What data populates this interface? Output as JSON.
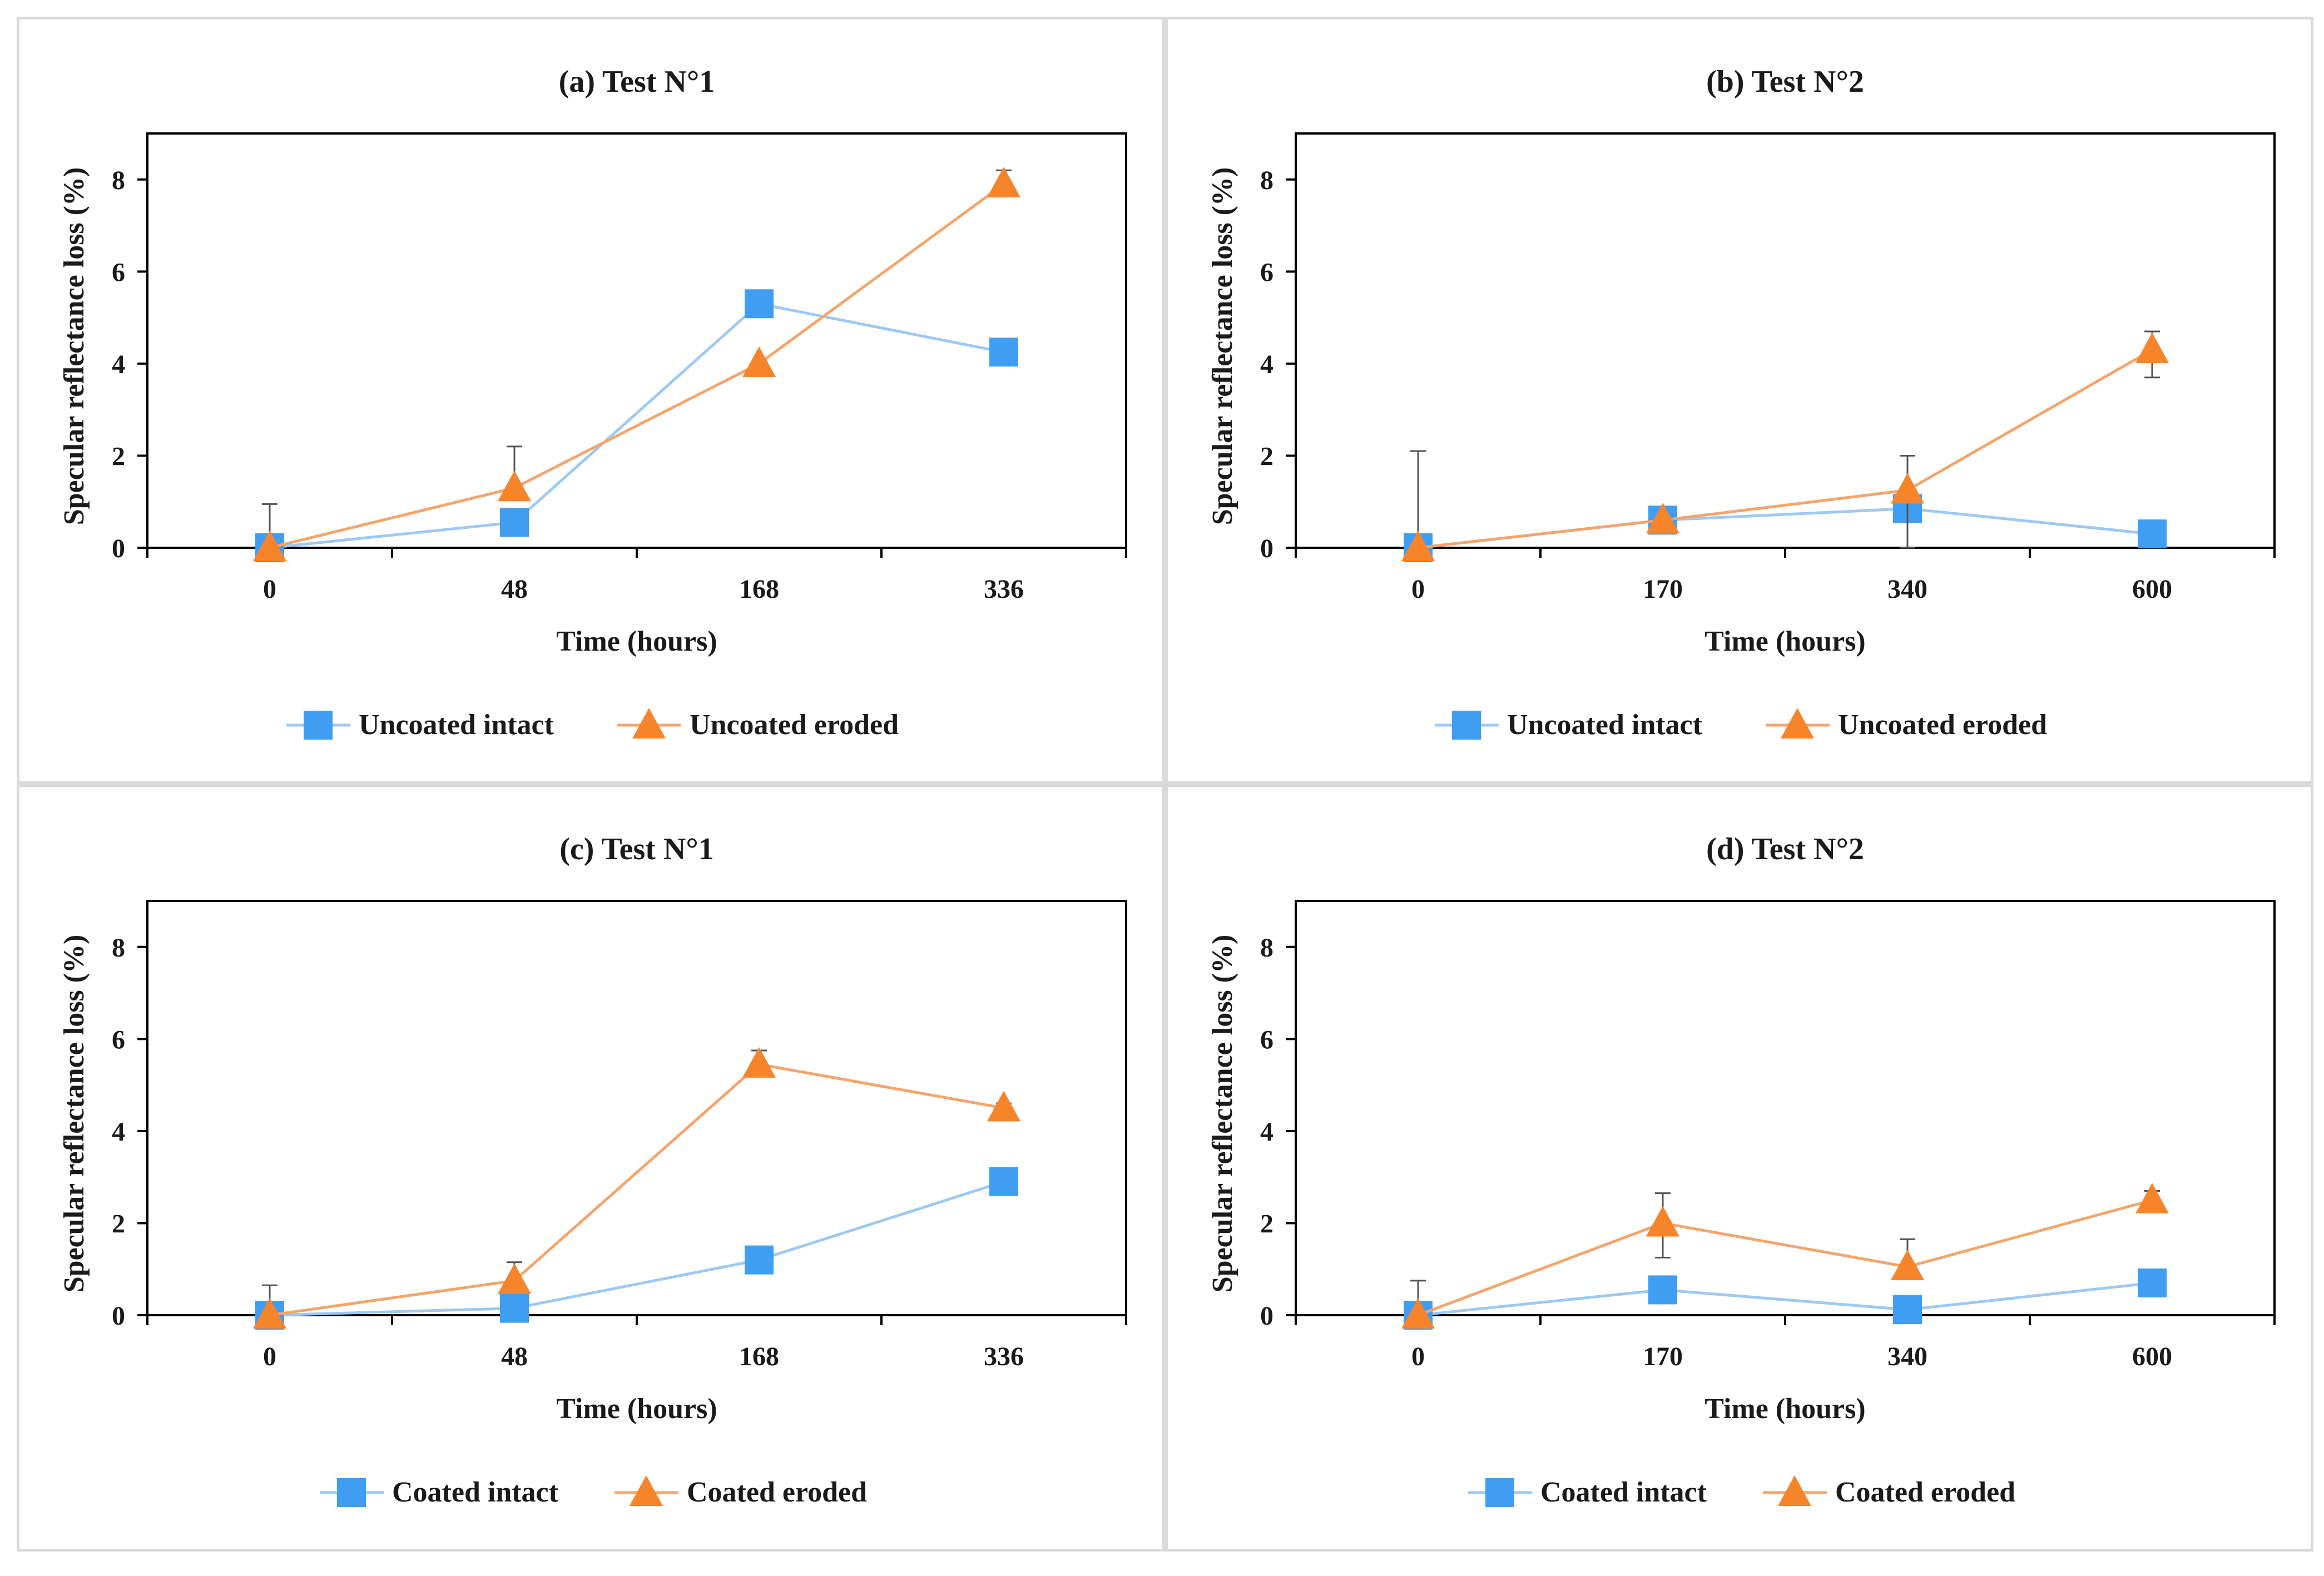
{
  "chart_data": [
    {
      "type": "line",
      "id": "a",
      "title": "(a) Test N°1",
      "xlabel": "Time (hours)",
      "ylabel": "Specular reflectance loss (%)",
      "categories": [
        "0",
        "48",
        "168",
        "336"
      ],
      "ylim": [
        0,
        9
      ],
      "yticks": [
        0,
        2,
        4,
        6,
        8
      ],
      "series": [
        {
          "name": "Uncoated intact",
          "marker": "square",
          "color": "#3f9df2",
          "line_color": "#9dc9f2",
          "values": [
            0,
            0.55,
            5.3,
            4.25
          ],
          "err_up": [
            0,
            0,
            0,
            0
          ]
        },
        {
          "name": "Uncoated eroded",
          "marker": "triangle",
          "color": "#f5842b",
          "line_color": "#f5a46b",
          "values": [
            0,
            1.3,
            4.0,
            7.9
          ],
          "err_up": [
            0.95,
            0.9,
            0,
            0.3
          ]
        }
      ]
    },
    {
      "type": "line",
      "id": "b",
      "title": "(b) Test N°2",
      "xlabel": "Time (hours)",
      "ylabel": "Specular reflectance loss (%)",
      "categories": [
        "0",
        "170",
        "340",
        "600"
      ],
      "ylim": [
        0,
        9
      ],
      "yticks": [
        0,
        2,
        4,
        6,
        8
      ],
      "series": [
        {
          "name": "Uncoated intact",
          "marker": "square",
          "color": "#3f9df2",
          "line_color": "#9dc9f2",
          "values": [
            0,
            0.6,
            0.85,
            0.3
          ],
          "err_up": [
            0,
            0,
            0,
            0
          ]
        },
        {
          "name": "Uncoated eroded",
          "marker": "triangle",
          "color": "#f5842b",
          "line_color": "#f5a46b",
          "values": [
            0,
            0.6,
            1.25,
            4.3
          ],
          "err_up": [
            2.1,
            0,
            0.75,
            0.4
          ],
          "err_down": [
            0,
            0,
            1.25,
            0.6
          ]
        }
      ]
    },
    {
      "type": "line",
      "id": "c",
      "title": "(c) Test N°1",
      "xlabel": "Time (hours)",
      "ylabel": "Specular reflectance loss (%)",
      "categories": [
        "0",
        "48",
        "168",
        "336"
      ],
      "ylim": [
        0,
        9
      ],
      "yticks": [
        0,
        2,
        4,
        6,
        8
      ],
      "series": [
        {
          "name": "Coated intact",
          "marker": "square",
          "color": "#3f9df2",
          "line_color": "#9dc9f2",
          "values": [
            0,
            0.15,
            1.2,
            2.9
          ],
          "err_up": [
            0,
            0,
            0,
            0
          ]
        },
        {
          "name": "Coated eroded",
          "marker": "triangle",
          "color": "#f5842b",
          "line_color": "#f5a46b",
          "values": [
            0,
            0.75,
            5.45,
            4.5
          ],
          "err_up": [
            0.65,
            0.4,
            0.3,
            0.1
          ]
        }
      ]
    },
    {
      "type": "line",
      "id": "d",
      "title": "(d) Test N°2",
      "xlabel": "Time (hours)",
      "ylabel": "Specular reflectance loss (%)",
      "categories": [
        "0",
        "170",
        "340",
        "600"
      ],
      "ylim": [
        0,
        9
      ],
      "yticks": [
        0,
        2,
        4,
        6,
        8
      ],
      "series": [
        {
          "name": "Coated intact",
          "marker": "square",
          "color": "#3f9df2",
          "line_color": "#9dc9f2",
          "values": [
            0,
            0.55,
            0.12,
            0.7
          ],
          "err_up": [
            0,
            0,
            0,
            0
          ]
        },
        {
          "name": "Coated eroded",
          "marker": "triangle",
          "color": "#f5842b",
          "line_color": "#f5a46b",
          "values": [
            0,
            2.0,
            1.05,
            2.5
          ],
          "err_up": [
            0.75,
            0.65,
            0.6,
            0.2
          ],
          "err_down": [
            0,
            0.75,
            0,
            0
          ]
        }
      ]
    }
  ]
}
